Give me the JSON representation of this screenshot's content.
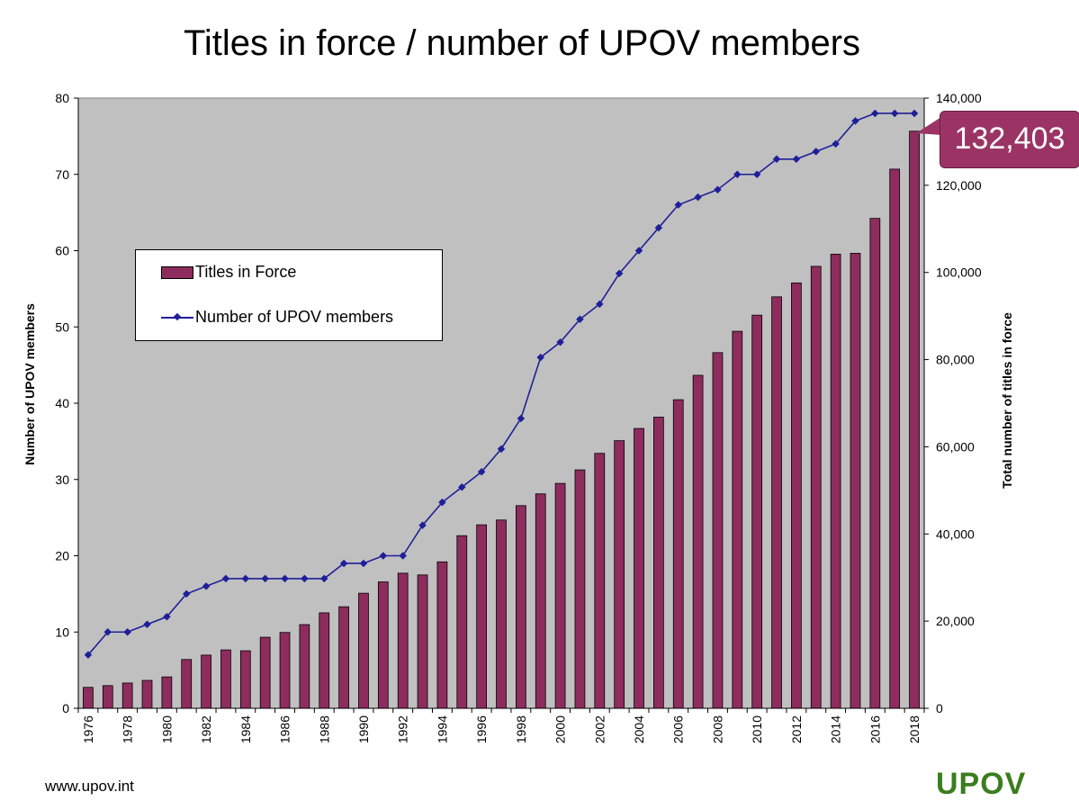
{
  "chart_data": {
    "type": "bar",
    "title": "Titles in force / number of UPOV members",
    "categories": [
      1976,
      1977,
      1978,
      1979,
      1980,
      1981,
      1982,
      1983,
      1984,
      1985,
      1986,
      1987,
      1988,
      1989,
      1990,
      1991,
      1992,
      1993,
      1994,
      1995,
      1996,
      1997,
      1998,
      1999,
      2000,
      2001,
      2002,
      2003,
      2004,
      2005,
      2006,
      2007,
      2008,
      2009,
      2010,
      2011,
      2012,
      2013,
      2014,
      2015,
      2016,
      2017,
      2018
    ],
    "x_tick_labels": [
      "1976",
      "1978",
      "1980",
      "1982",
      "1984",
      "1986",
      "1988",
      "1990",
      "1992",
      "1994",
      "1996",
      "1998",
      "2000",
      "2002",
      "2004",
      "2006",
      "2008",
      "2010",
      "2012",
      "2014",
      "2016",
      "2018"
    ],
    "series": [
      {
        "name": "Titles in Force",
        "type": "bar",
        "axis": "right",
        "color": "#8e2c5e",
        "values": [
          4800,
          5200,
          5800,
          6400,
          7200,
          11200,
          12200,
          13400,
          13200,
          16300,
          17400,
          19200,
          21900,
          23300,
          26400,
          29000,
          31000,
          30600,
          33600,
          39600,
          42100,
          43200,
          46500,
          49200,
          51600,
          54700,
          58500,
          61400,
          64200,
          66800,
          70800,
          76400,
          81600,
          86500,
          90200,
          94400,
          97600,
          101400,
          104200,
          104400,
          112400,
          123700,
          132403
        ]
      },
      {
        "name": "Number of UPOV members",
        "type": "line",
        "axis": "left",
        "color": "#1f1f9a",
        "values": [
          7,
          10,
          10,
          11,
          12,
          15,
          16,
          17,
          17,
          17,
          17,
          17,
          17,
          19,
          19,
          20,
          20,
          24,
          27,
          29,
          31,
          34,
          38,
          46,
          48,
          51,
          53,
          57,
          60,
          63,
          66,
          67,
          68,
          70,
          70,
          72,
          72,
          73,
          74,
          77,
          78,
          78,
          78
        ]
      }
    ],
    "y_left": {
      "label": "Number of UPOV members",
      "min": 0,
      "max": 80,
      "ticks": [
        "0",
        "10",
        "20",
        "30",
        "40",
        "50",
        "60",
        "70",
        "80"
      ]
    },
    "y_right": {
      "label": "Total number of titles in force",
      "min": 0,
      "max": 140000,
      "ticks": [
        "0",
        "20,000",
        "40,000",
        "60,000",
        "80,000",
        "100,000",
        "120,000",
        "140,000"
      ]
    },
    "callout": "132,403",
    "legend_position": "upper-left inside plot",
    "plot_background": "#c0c0c0"
  },
  "footer": {
    "url": "www.upov.int",
    "logo_text": "UPOV"
  }
}
